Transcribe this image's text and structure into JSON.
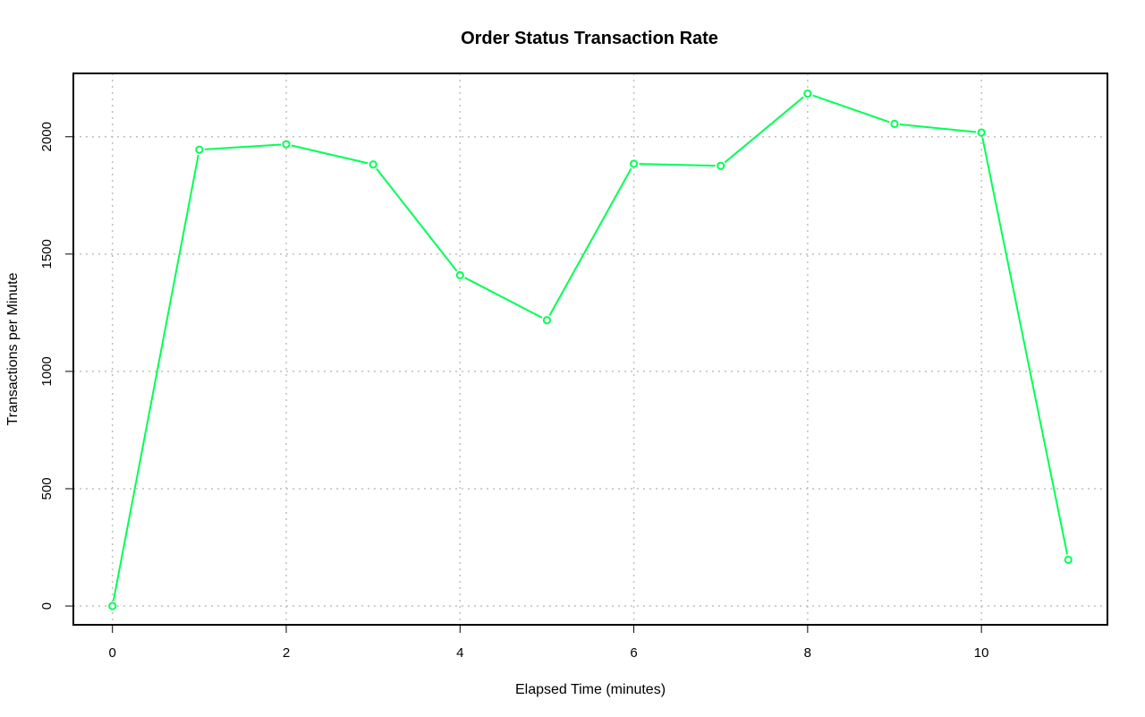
{
  "chart_data": {
    "type": "line",
    "title": "Order Status Transaction Rate",
    "xlabel": "Elapsed Time (minutes)",
    "ylabel": "Transactions per Minute",
    "xlim": [
      -0.45,
      11.45
    ],
    "ylim": [
      -80,
      2270
    ],
    "x_ticks": [
      0,
      2,
      4,
      6,
      8,
      10
    ],
    "y_ticks": [
      0,
      500,
      1000,
      1500,
      2000
    ],
    "grid": true,
    "grid_style": "dotted",
    "series": [
      {
        "color": "#00ff55",
        "marker": "open-circle",
        "x": [
          0,
          1,
          2,
          3,
          4,
          5,
          6,
          7,
          8,
          9,
          10,
          11
        ],
        "y": [
          0,
          1945,
          1968,
          1882,
          1410,
          1218,
          1885,
          1876,
          2184,
          2055,
          2018,
          197
        ]
      }
    ]
  }
}
